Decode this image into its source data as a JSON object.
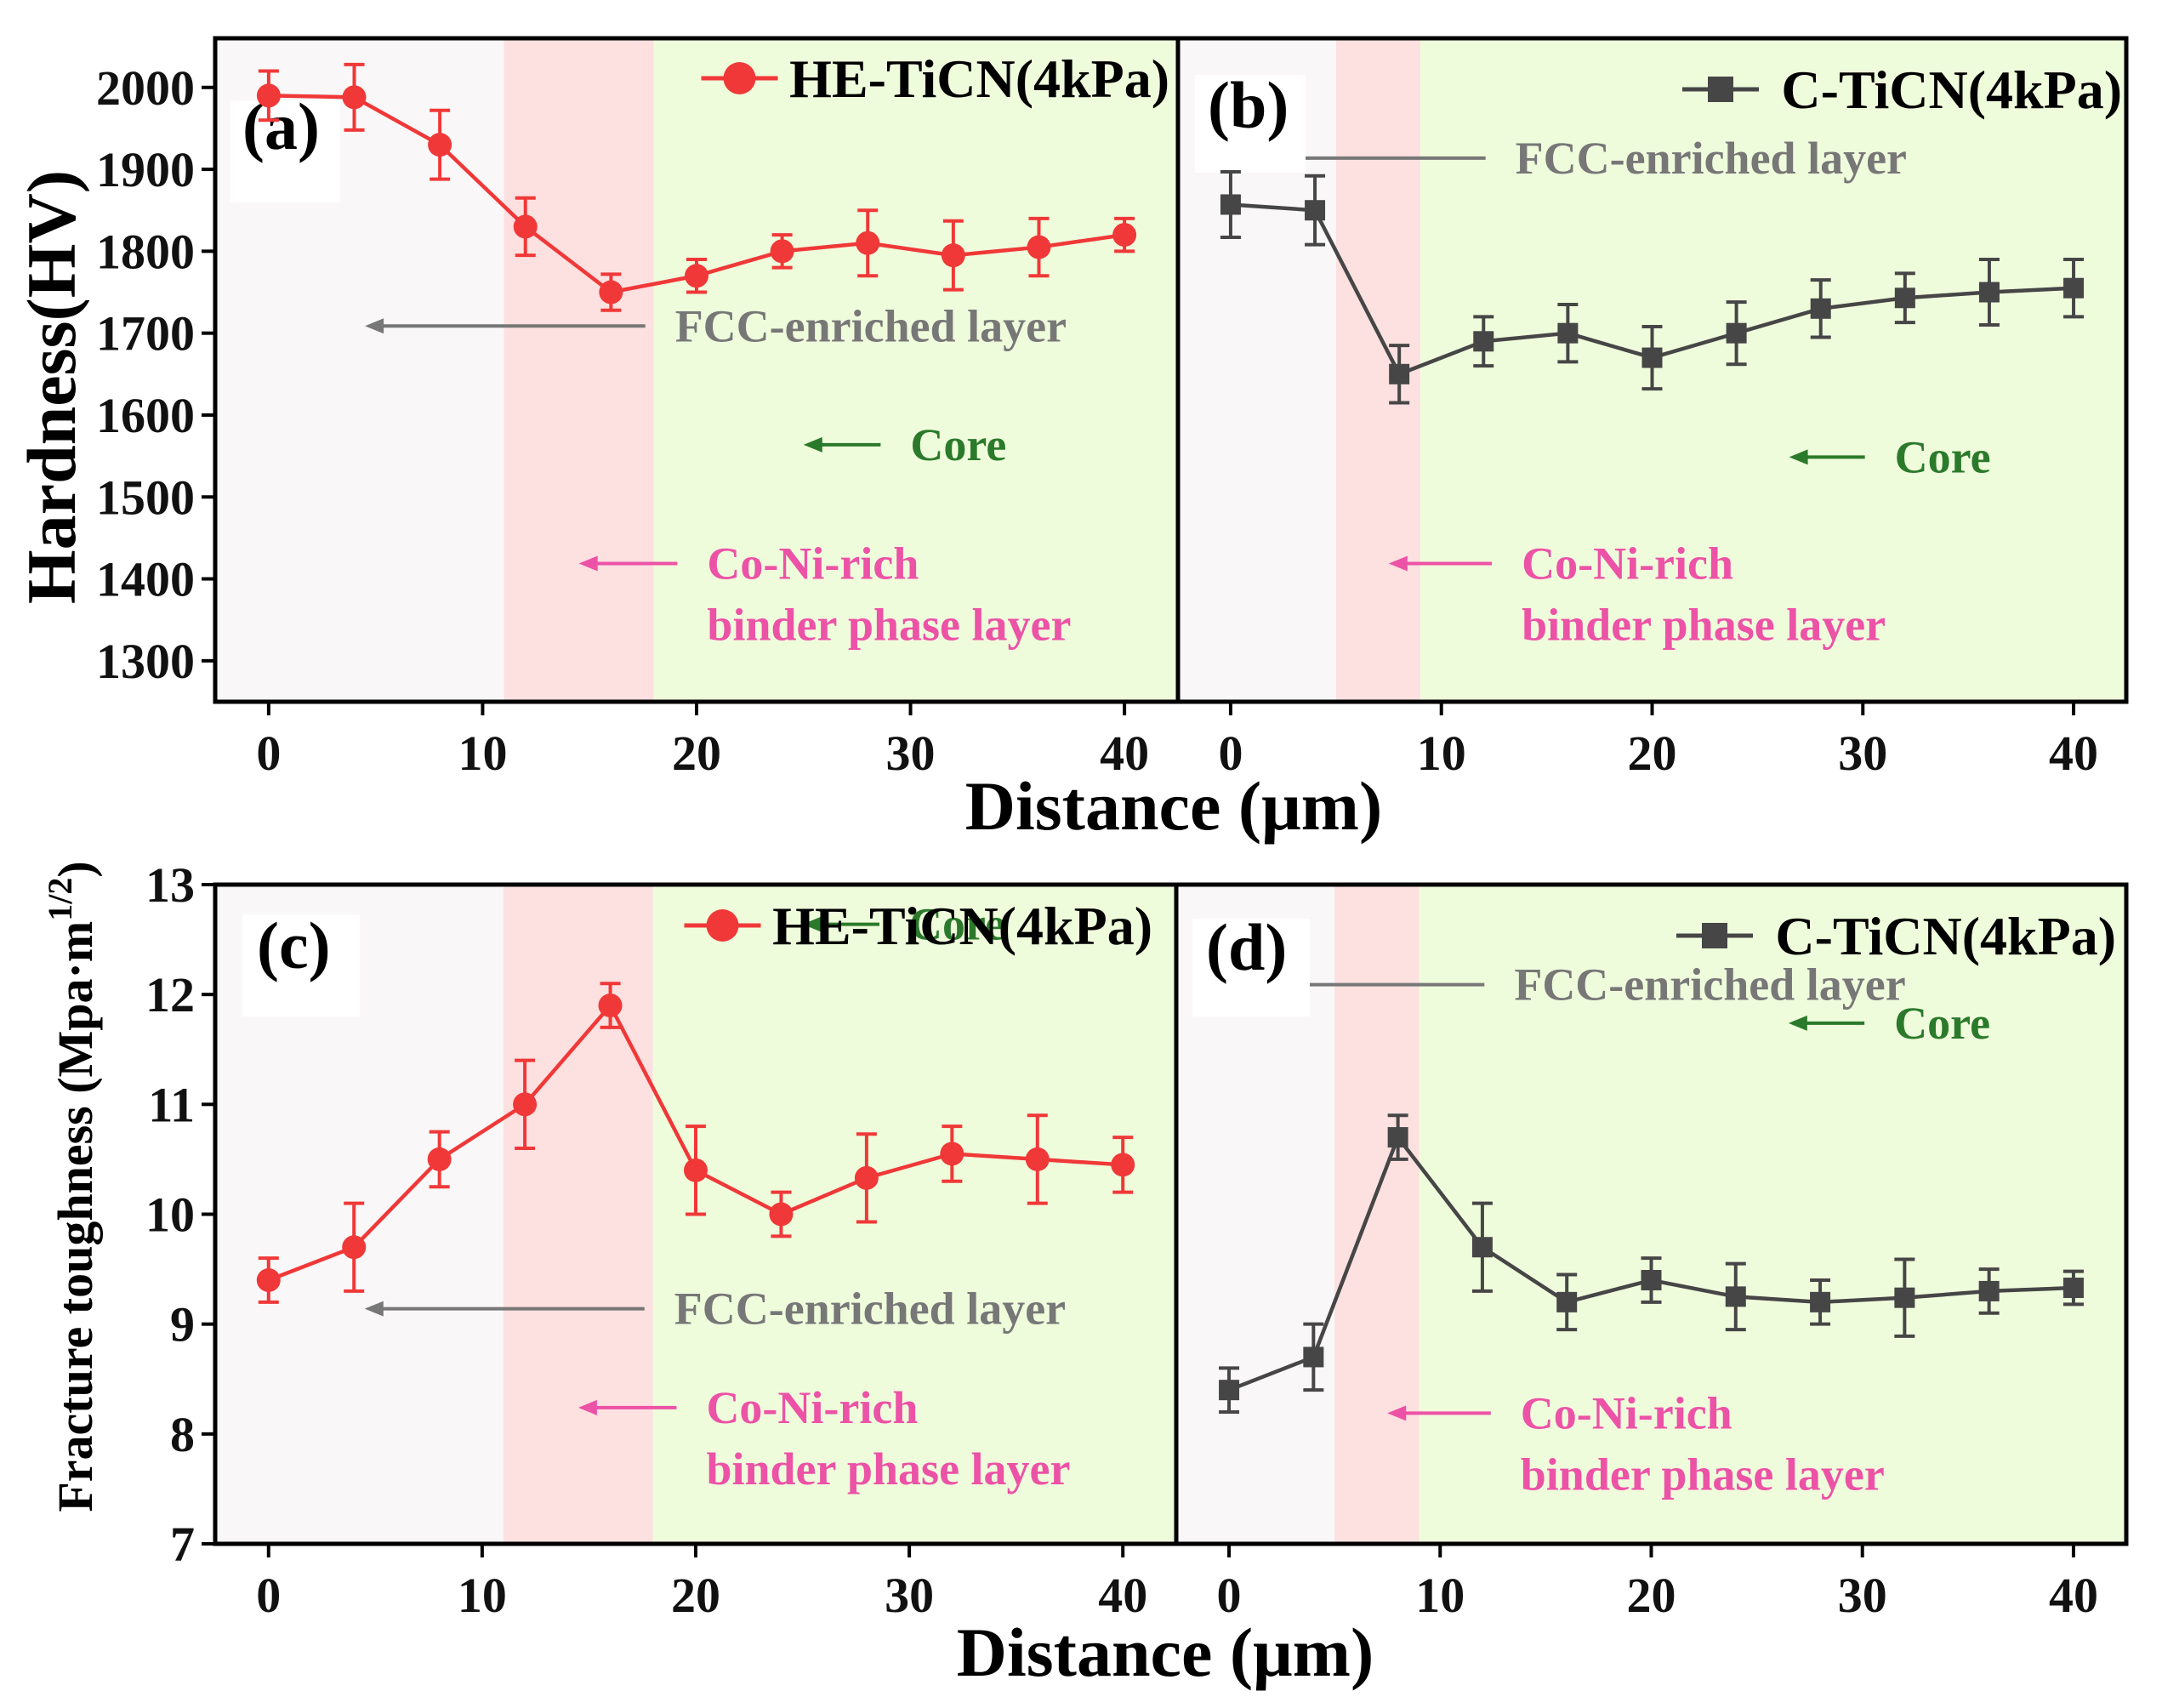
{
  "figure": {
    "x_axis_title": "Distance (μm)",
    "ylabel_hardness": "Hardness(HV)",
    "ylabel_toughness": "Fracture toughness (Mpa·m",
    "ylabel_toughness_sup": "1/2",
    "ylabel_toughness_close": ")"
  },
  "chart_data": [
    {
      "type": "line",
      "panel": "(a)",
      "series": [
        {
          "name": "HE-TiCN(4kPa)",
          "color": "#f03838",
          "marker": "circle",
          "x": [
            0,
            4,
            8,
            12,
            16,
            20,
            24,
            28,
            32,
            36,
            40
          ],
          "y": [
            1990,
            1988,
            1930,
            1830,
            1750,
            1770,
            1800,
            1810,
            1795,
            1805,
            1820
          ],
          "err": [
            30,
            40,
            42,
            35,
            22,
            20,
            20,
            40,
            42,
            35,
            20
          ]
        }
      ],
      "xlim": [
        -2.5,
        42.5
      ],
      "ylim": [
        1250,
        2060
      ],
      "xticks": [
        0,
        10,
        20,
        30,
        40
      ],
      "yticks": [
        1300,
        1400,
        1500,
        1600,
        1700,
        1800,
        1900,
        2000
      ],
      "regions": [
        {
          "from": -2.5,
          "to": 11,
          "color": "#f9f7f8"
        },
        {
          "from": 11,
          "to": 18,
          "color": "#fde0e0"
        },
        {
          "from": 18,
          "to": 42.5,
          "color": "#effcdc"
        }
      ],
      "annotations": [
        {
          "text": "FCC-enriched layer",
          "x_data": 18,
          "y_data": 1690,
          "arrow_to_x": 4.5,
          "color": "#777777"
        },
        {
          "text": "Core",
          "x_data": 29,
          "y_data": 1545,
          "arrow_to_x": 25,
          "color": "#2b7a2b"
        },
        {
          "lines": [
            "Co-Ni-rich",
            "binder phase layer"
          ],
          "x_data": 19.5,
          "y_data": 1400,
          "arrow_to_x": 14.5,
          "color": "#ec52a6"
        }
      ]
    },
    {
      "type": "line",
      "panel": "(b)",
      "series": [
        {
          "name": "C-TiCN(4kPa)",
          "color": "#464646",
          "marker": "square",
          "x": [
            0,
            4,
            8,
            12,
            16,
            20,
            24,
            28,
            32,
            36,
            40
          ],
          "y": [
            1857,
            1850,
            1650,
            1690,
            1700,
            1670,
            1700,
            1730,
            1743,
            1750,
            1755
          ],
          "err": [
            40,
            42,
            35,
            30,
            35,
            38,
            38,
            35,
            30,
            40,
            35
          ]
        }
      ],
      "xlim": [
        -2.5,
        42.5
      ],
      "ylim": [
        1250,
        2060
      ],
      "xticks": [
        0,
        10,
        20,
        30,
        40
      ],
      "regions": [
        {
          "from": -2.5,
          "to": 5,
          "color": "#f9f7f8"
        },
        {
          "from": 5,
          "to": 9,
          "color": "#fde0e0"
        },
        {
          "from": 9,
          "to": 42.5,
          "color": "#effcdc"
        }
      ],
      "annotations": [
        {
          "text": "FCC-enriched layer",
          "x_data": 12.5,
          "y_data": 1895,
          "arrow_to_x": 2,
          "color": "#777777"
        },
        {
          "text": "Core",
          "x_data": 30.5,
          "y_data": 1530,
          "arrow_to_x": 26.5,
          "color": "#2b7a2b"
        },
        {
          "lines": [
            "Co-Ni-rich",
            "binder phase layer"
          ],
          "x_data": 12.8,
          "y_data": 1400,
          "arrow_to_x": 7.5,
          "color": "#ec52a6"
        }
      ]
    },
    {
      "type": "line",
      "panel": "(c)",
      "series": [
        {
          "name": "HE-TiCN(4kPa)",
          "color": "#f03838",
          "marker": "circle",
          "x": [
            0,
            4,
            8,
            12,
            16,
            20,
            24,
            28,
            32,
            36,
            40
          ],
          "y": [
            9.4,
            9.7,
            10.5,
            11.0,
            11.9,
            10.4,
            10.0,
            10.33,
            10.55,
            10.5,
            10.45
          ],
          "err": [
            0.2,
            0.4,
            0.25,
            0.4,
            0.2,
            0.4,
            0.2,
            0.4,
            0.25,
            0.4,
            0.25
          ]
        }
      ],
      "xlim": [
        -2.5,
        42.5
      ],
      "ylim": [
        7,
        13
      ],
      "xticks": [
        0,
        10,
        20,
        30,
        40
      ],
      "yticks": [
        7,
        8,
        9,
        10,
        11,
        12,
        13
      ],
      "regions": [
        {
          "from": -2.5,
          "to": 11,
          "color": "#f9f7f8"
        },
        {
          "from": 11,
          "to": 18,
          "color": "#fde0e0"
        },
        {
          "from": 18,
          "to": 42.5,
          "color": "#effcdc"
        }
      ],
      "annotations": [
        {
          "text": "FCC-enriched layer",
          "x_data": 18,
          "y_data": 9.0,
          "arrow_to_x": 4.5,
          "color": "#777777"
        },
        {
          "text": "Core",
          "x_data": 29,
          "y_data": 12.5,
          "arrow_to_x": 25,
          "color": "#2b7a2b"
        },
        {
          "lines": [
            "Co-Ni-rich",
            "binder phase layer"
          ],
          "x_data": 19.5,
          "y_data": 8.1,
          "arrow_to_x": 14.5,
          "color": "#ec52a6"
        }
      ]
    },
    {
      "type": "line",
      "panel": "(d)",
      "series": [
        {
          "name": "C-TiCN(4kPa)",
          "color": "#464646",
          "marker": "square",
          "x": [
            0,
            4,
            8,
            12,
            16,
            20,
            24,
            28,
            32,
            36,
            40
          ],
          "y": [
            8.4,
            8.7,
            10.7,
            9.7,
            9.2,
            9.4,
            9.25,
            9.2,
            9.24,
            9.3,
            9.33
          ],
          "err": [
            0.2,
            0.3,
            0.2,
            0.4,
            0.25,
            0.2,
            0.3,
            0.2,
            0.35,
            0.2,
            0.15
          ]
        }
      ],
      "xlim": [
        -2.5,
        42.5
      ],
      "ylim": [
        7,
        13
      ],
      "xticks": [
        0,
        10,
        20,
        30,
        40
      ],
      "regions": [
        {
          "from": -2.5,
          "to": 5,
          "color": "#f9f7f8"
        },
        {
          "from": 5,
          "to": 9,
          "color": "#fde0e0"
        },
        {
          "from": 9,
          "to": 42.5,
          "color": "#effcdc"
        }
      ],
      "annotations": [
        {
          "text": "FCC-enriched layer",
          "x_data": 12.5,
          "y_data": 11.95,
          "arrow_to_x": 1,
          "color": "#777777"
        },
        {
          "text": "Core",
          "x_data": 30.5,
          "y_data": 11.6,
          "arrow_to_x": 26.5,
          "color": "#2b7a2b"
        },
        {
          "lines": [
            "Co-Ni-rich",
            "binder phase layer"
          ],
          "x_data": 12.8,
          "y_data": 8.05,
          "arrow_to_x": 7.5,
          "color": "#ec52a6"
        }
      ]
    }
  ]
}
